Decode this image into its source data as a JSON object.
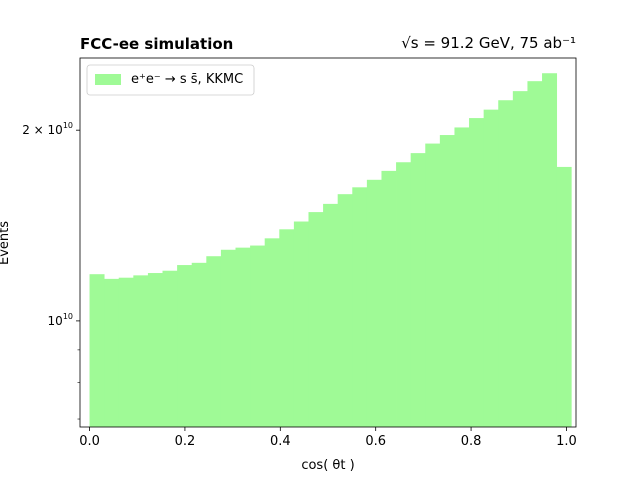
{
  "chart_data": {
    "type": "bar",
    "title_left": "FCC-ee simulation",
    "title_right": "√s = 91.2 GeV, 75 ab⁻¹",
    "xlabel": "cos( θt )",
    "ylabel": "Events",
    "xlim": [
      -0.02,
      1.02
    ],
    "ylim": [
      6800000000,
      26000000000
    ],
    "yscale": "log",
    "x_ticks": [
      {
        "value": 0.0,
        "label": "0.0"
      },
      {
        "value": 0.2,
        "label": "0.2"
      },
      {
        "value": 0.4,
        "label": "0.4"
      },
      {
        "value": 0.6,
        "label": "0.6"
      },
      {
        "value": 0.8,
        "label": "0.8"
      },
      {
        "value": 1.0,
        "label": "1.0"
      }
    ],
    "y_major_ticks": [
      {
        "value": 10000000000,
        "label_base": "10",
        "label_exp": "10"
      },
      {
        "value": 20000000000,
        "label_base": "2 × 10",
        "label_exp": "10"
      }
    ],
    "y_minor_ticks": [
      7000000000,
      8000000000,
      9000000000
    ],
    "bin_edges": [
      0.0,
      1.01
    ],
    "legend": {
      "placement": "top-left",
      "label": "e⁺e⁻ → s s̄, KKMC",
      "color": "#9ffa96"
    },
    "series": [
      {
        "color": "#9ffa96",
        "values": [
          11850000000.0,
          11650000000.0,
          11700000000.0,
          11800000000.0,
          11900000000.0,
          12000000000.0,
          12250000000.0,
          12350000000.0,
          12650000000.0,
          12950000000.0,
          13050000000.0,
          13150000000.0,
          13500000000.0,
          13950000000.0,
          14350000000.0,
          14850000000.0,
          15300000000.0,
          15850000000.0,
          16250000000.0,
          16700000000.0,
          17250000000.0,
          17800000000.0,
          18400000000.0,
          19050000000.0,
          19650000000.0,
          20200000000.0,
          20900000000.0,
          21550000000.0,
          22300000000.0,
          23050000000.0,
          23900000000.0,
          24600000000.0,
          17500000000.0
        ]
      }
    ]
  }
}
